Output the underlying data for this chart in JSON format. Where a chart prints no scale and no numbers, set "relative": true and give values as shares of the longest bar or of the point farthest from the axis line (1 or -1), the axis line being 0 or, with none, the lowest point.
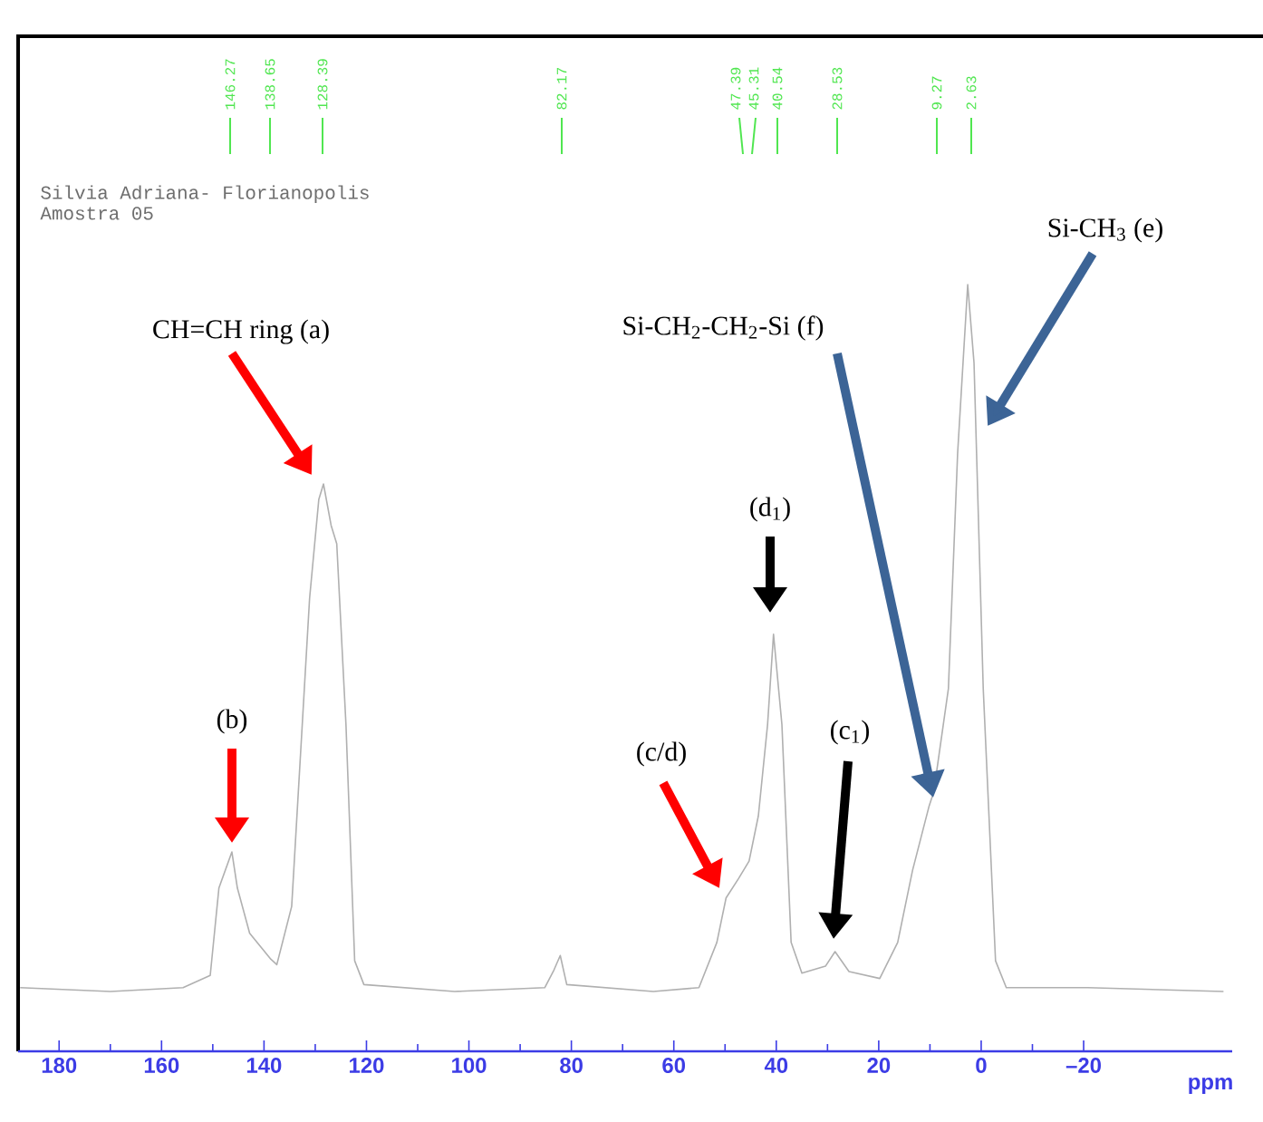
{
  "chart_data": {
    "type": "line",
    "relative": true,
    "xlabel": "ppm",
    "xlim": [
      188,
      -49
    ],
    "xticks": [
      180,
      160,
      140,
      120,
      100,
      80,
      60,
      40,
      20,
      0,
      {
        "value": -20,
        "label": "–20"
      }
    ],
    "series": [
      {
        "color": "#b0b0b0",
        "x": [
          187.6,
          170,
          155.8,
          150.5,
          148.8,
          146.27,
          145.2,
          142.8,
          138.65,
          137.5,
          134.6,
          131.1,
          129.3,
          128.39,
          126.9,
          125.8,
          124,
          122.3,
          120.5,
          102.8,
          85.2,
          83.4,
          82.17,
          80.9,
          64,
          55.1,
          51.6,
          49.8,
          47.39,
          45.31,
          43.5,
          41.7,
          40.54,
          38.9,
          37.1,
          35,
          30.4,
          28.53,
          25.8,
          19.8,
          16.3,
          13.4,
          10.2,
          9.27,
          6.4,
          4.6,
          2.63,
          1.4,
          -0.4,
          -2.8,
          -4.9,
          -20.8,
          -47.3
        ],
        "values": [
          0.083,
          0.078,
          0.083,
          0.099,
          0.213,
          0.26,
          0.213,
          0.154,
          0.12,
          0.113,
          0.189,
          0.591,
          0.72,
          0.74,
          0.686,
          0.662,
          0.426,
          0.118,
          0.087,
          0.078,
          0.083,
          0.106,
          0.125,
          0.087,
          0.078,
          0.083,
          0.142,
          0.2,
          0.225,
          0.248,
          0.307,
          0.426,
          0.544,
          0.426,
          0.142,
          0.102,
          0.111,
          0.13,
          0.104,
          0.095,
          0.142,
          0.236,
          0.319,
          0.338,
          0.473,
          0.78,
          1.0,
          0.898,
          0.473,
          0.118,
          0.083,
          0.083,
          0.078
        ]
      }
    ],
    "annotations": [
      "Silvia Adriana- Florianopolis",
      "Amostra 05",
      "146.27",
      "138.65",
      "128.39",
      "82.17",
      "47.39",
      "45.31",
      "40.54",
      "28.53",
      "9.27",
      "2.63",
      "CH=CH ring (a)",
      "(b)",
      "(c/d)",
      "(d$_{1}$)",
      "(c$_{1}$)",
      "Si-CH$_{2}$-CH$_{2}$-Si (f)",
      "Si-CH$_{3}$ (e)"
    ]
  }
}
